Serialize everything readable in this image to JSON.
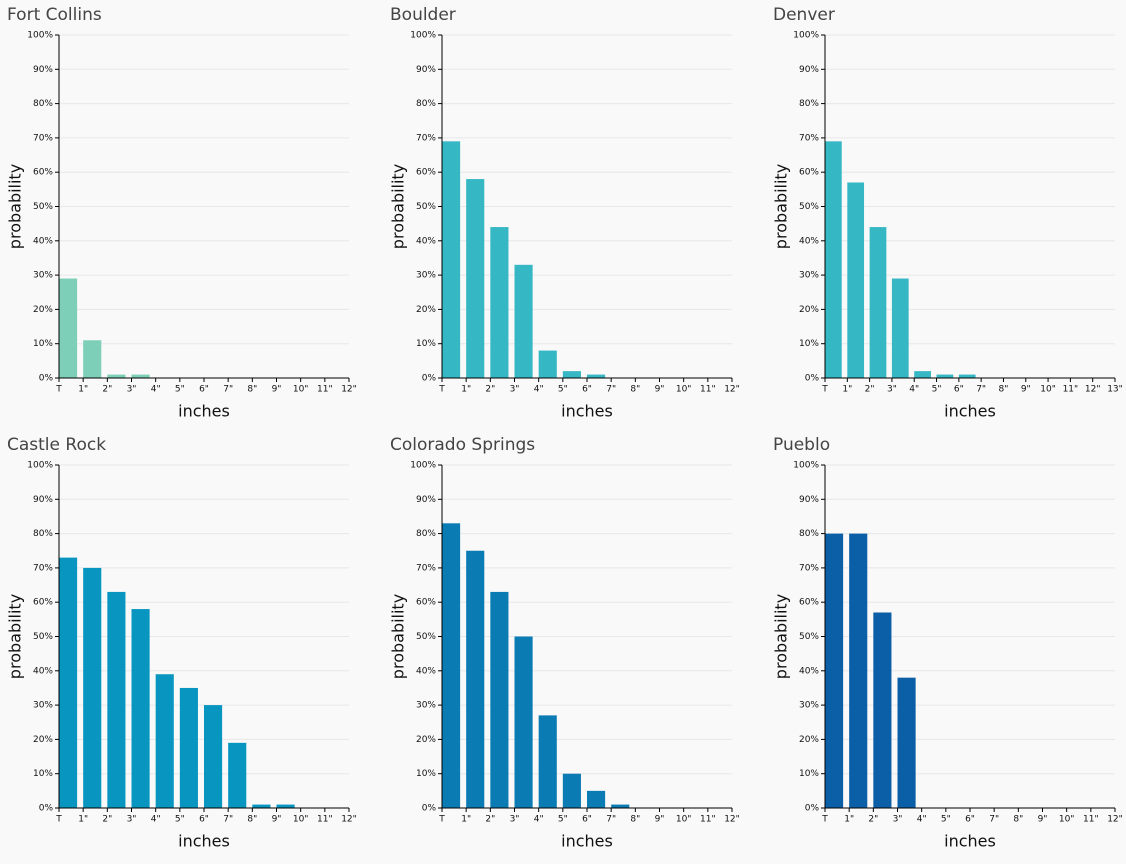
{
  "chart_data": [
    {
      "type": "bar",
      "title": "Fort Collins",
      "color": "#7dcfb8",
      "xlabel": "inches",
      "ylabel": "probability",
      "categories": [
        "T",
        "1\"",
        "2\"",
        "3\"",
        "4\"",
        "5\"",
        "6\"",
        "7\"",
        "8\"",
        "9\"",
        "10\"",
        "11\"",
        "12\""
      ],
      "values": [
        29,
        11,
        1,
        1,
        0,
        0,
        0,
        0,
        0,
        0,
        0,
        0,
        0
      ],
      "ylim": [
        0,
        100
      ],
      "grid": true,
      "yticks": [
        {
          "value": 0,
          "label": "0%"
        },
        {
          "value": 10,
          "label": "10%"
        },
        {
          "value": 20,
          "label": "20%"
        },
        {
          "value": 30,
          "label": "30%"
        },
        {
          "value": 40,
          "label": "40%"
        },
        {
          "value": 50,
          "label": "50%"
        },
        {
          "value": 60,
          "label": "60%"
        },
        {
          "value": 70,
          "label": "70%"
        },
        {
          "value": 80,
          "label": "80%"
        },
        {
          "value": 90,
          "label": "90%"
        },
        {
          "value": 100,
          "label": "100%"
        }
      ]
    },
    {
      "type": "bar",
      "title": "Boulder",
      "color": "#36b7c4",
      "xlabel": "inches",
      "ylabel": "probability",
      "categories": [
        "T",
        "1\"",
        "2\"",
        "3\"",
        "4\"",
        "5\"",
        "6\"",
        "7\"",
        "8\"",
        "9\"",
        "10\"",
        "11\"",
        "12\""
      ],
      "values": [
        69,
        58,
        44,
        33,
        8,
        2,
        1,
        0,
        0,
        0,
        0,
        0,
        0
      ],
      "ylim": [
        0,
        100
      ],
      "grid": true,
      "yticks": [
        {
          "value": 0,
          "label": "0%"
        },
        {
          "value": 10,
          "label": "10%"
        },
        {
          "value": 20,
          "label": "20%"
        },
        {
          "value": 30,
          "label": "30%"
        },
        {
          "value": 40,
          "label": "40%"
        },
        {
          "value": 50,
          "label": "50%"
        },
        {
          "value": 60,
          "label": "60%"
        },
        {
          "value": 70,
          "label": "70%"
        },
        {
          "value": 80,
          "label": "80%"
        },
        {
          "value": 90,
          "label": "90%"
        },
        {
          "value": 100,
          "label": "100%"
        }
      ]
    },
    {
      "type": "bar",
      "title": "Denver",
      "color": "#36b7c4",
      "xlabel": "inches",
      "ylabel": "probability",
      "categories": [
        "T",
        "1\"",
        "2\"",
        "3\"",
        "4\"",
        "5\"",
        "6\"",
        "7\"",
        "8\"",
        "9\"",
        "10\"",
        "11\"",
        "12\"",
        "13\""
      ],
      "values": [
        69,
        57,
        44,
        29,
        2,
        1,
        1,
        0,
        0,
        0,
        0,
        0,
        0,
        0
      ],
      "ylim": [
        0,
        100
      ],
      "grid": true,
      "yticks": [
        {
          "value": 0,
          "label": "0%"
        },
        {
          "value": 10,
          "label": "10%"
        },
        {
          "value": 20,
          "label": "20%"
        },
        {
          "value": 30,
          "label": "30%"
        },
        {
          "value": 40,
          "label": "40%"
        },
        {
          "value": 50,
          "label": "50%"
        },
        {
          "value": 60,
          "label": "60%"
        },
        {
          "value": 70,
          "label": "70%"
        },
        {
          "value": 80,
          "label": "80%"
        },
        {
          "value": 90,
          "label": "90%"
        },
        {
          "value": 100,
          "label": "100%"
        }
      ]
    },
    {
      "type": "bar",
      "title": "Castle Rock",
      "color": "#0896c1",
      "xlabel": "inches",
      "ylabel": "probability",
      "categories": [
        "T",
        "1\"",
        "2\"",
        "3\"",
        "4\"",
        "5\"",
        "6\"",
        "7\"",
        "8\"",
        "9\"",
        "10\"",
        "11\"",
        "12\""
      ],
      "values": [
        73,
        70,
        63,
        58,
        39,
        35,
        30,
        19,
        1,
        1,
        0,
        0,
        0
      ],
      "ylim": [
        0,
        100
      ],
      "grid": true,
      "yticks": [
        {
          "value": 0,
          "label": "0%"
        },
        {
          "value": 10,
          "label": "10%"
        },
        {
          "value": 20,
          "label": "20%"
        },
        {
          "value": 30,
          "label": "30%"
        },
        {
          "value": 40,
          "label": "40%"
        },
        {
          "value": 50,
          "label": "50%"
        },
        {
          "value": 60,
          "label": "60%"
        },
        {
          "value": 70,
          "label": "70%"
        },
        {
          "value": 80,
          "label": "80%"
        },
        {
          "value": 90,
          "label": "90%"
        },
        {
          "value": 100,
          "label": "100%"
        }
      ]
    },
    {
      "type": "bar",
      "title": "Colorado Springs",
      "color": "#0a7bb3",
      "xlabel": "inches",
      "ylabel": "probability",
      "categories": [
        "T",
        "1\"",
        "2\"",
        "3\"",
        "4\"",
        "5\"",
        "6\"",
        "7\"",
        "8\"",
        "9\"",
        "10\"",
        "11\"",
        "12\""
      ],
      "values": [
        83,
        75,
        63,
        50,
        27,
        10,
        5,
        1,
        0,
        0,
        0,
        0,
        0
      ],
      "ylim": [
        0,
        100
      ],
      "grid": true,
      "yticks": [
        {
          "value": 0,
          "label": "0%"
        },
        {
          "value": 10,
          "label": "10%"
        },
        {
          "value": 20,
          "label": "20%"
        },
        {
          "value": 30,
          "label": "30%"
        },
        {
          "value": 40,
          "label": "40%"
        },
        {
          "value": 50,
          "label": "50%"
        },
        {
          "value": 60,
          "label": "60%"
        },
        {
          "value": 70,
          "label": "70%"
        },
        {
          "value": 80,
          "label": "80%"
        },
        {
          "value": 90,
          "label": "90%"
        },
        {
          "value": 100,
          "label": "100%"
        }
      ]
    },
    {
      "type": "bar",
      "title": "Pueblo",
      "color": "#0b5fa6",
      "xlabel": "inches",
      "ylabel": "probability",
      "categories": [
        "T",
        "1\"",
        "2\"",
        "3\"",
        "4\"",
        "5\"",
        "6\"",
        "7\"",
        "8\"",
        "9\"",
        "10\"",
        "11\"",
        "12\""
      ],
      "values": [
        80,
        80,
        57,
        38,
        0,
        0,
        0,
        0,
        0,
        0,
        0,
        0,
        0
      ],
      "ylim": [
        0,
        100
      ],
      "grid": true,
      "yticks": [
        {
          "value": 0,
          "label": "0%"
        },
        {
          "value": 10,
          "label": "10%"
        },
        {
          "value": 20,
          "label": "20%"
        },
        {
          "value": 30,
          "label": "30%"
        },
        {
          "value": 40,
          "label": "40%"
        },
        {
          "value": 50,
          "label": "50%"
        },
        {
          "value": 60,
          "label": "60%"
        },
        {
          "value": 70,
          "label": "70%"
        },
        {
          "value": 80,
          "label": "80%"
        },
        {
          "value": 90,
          "label": "90%"
        },
        {
          "value": 100,
          "label": "100%"
        }
      ]
    }
  ]
}
